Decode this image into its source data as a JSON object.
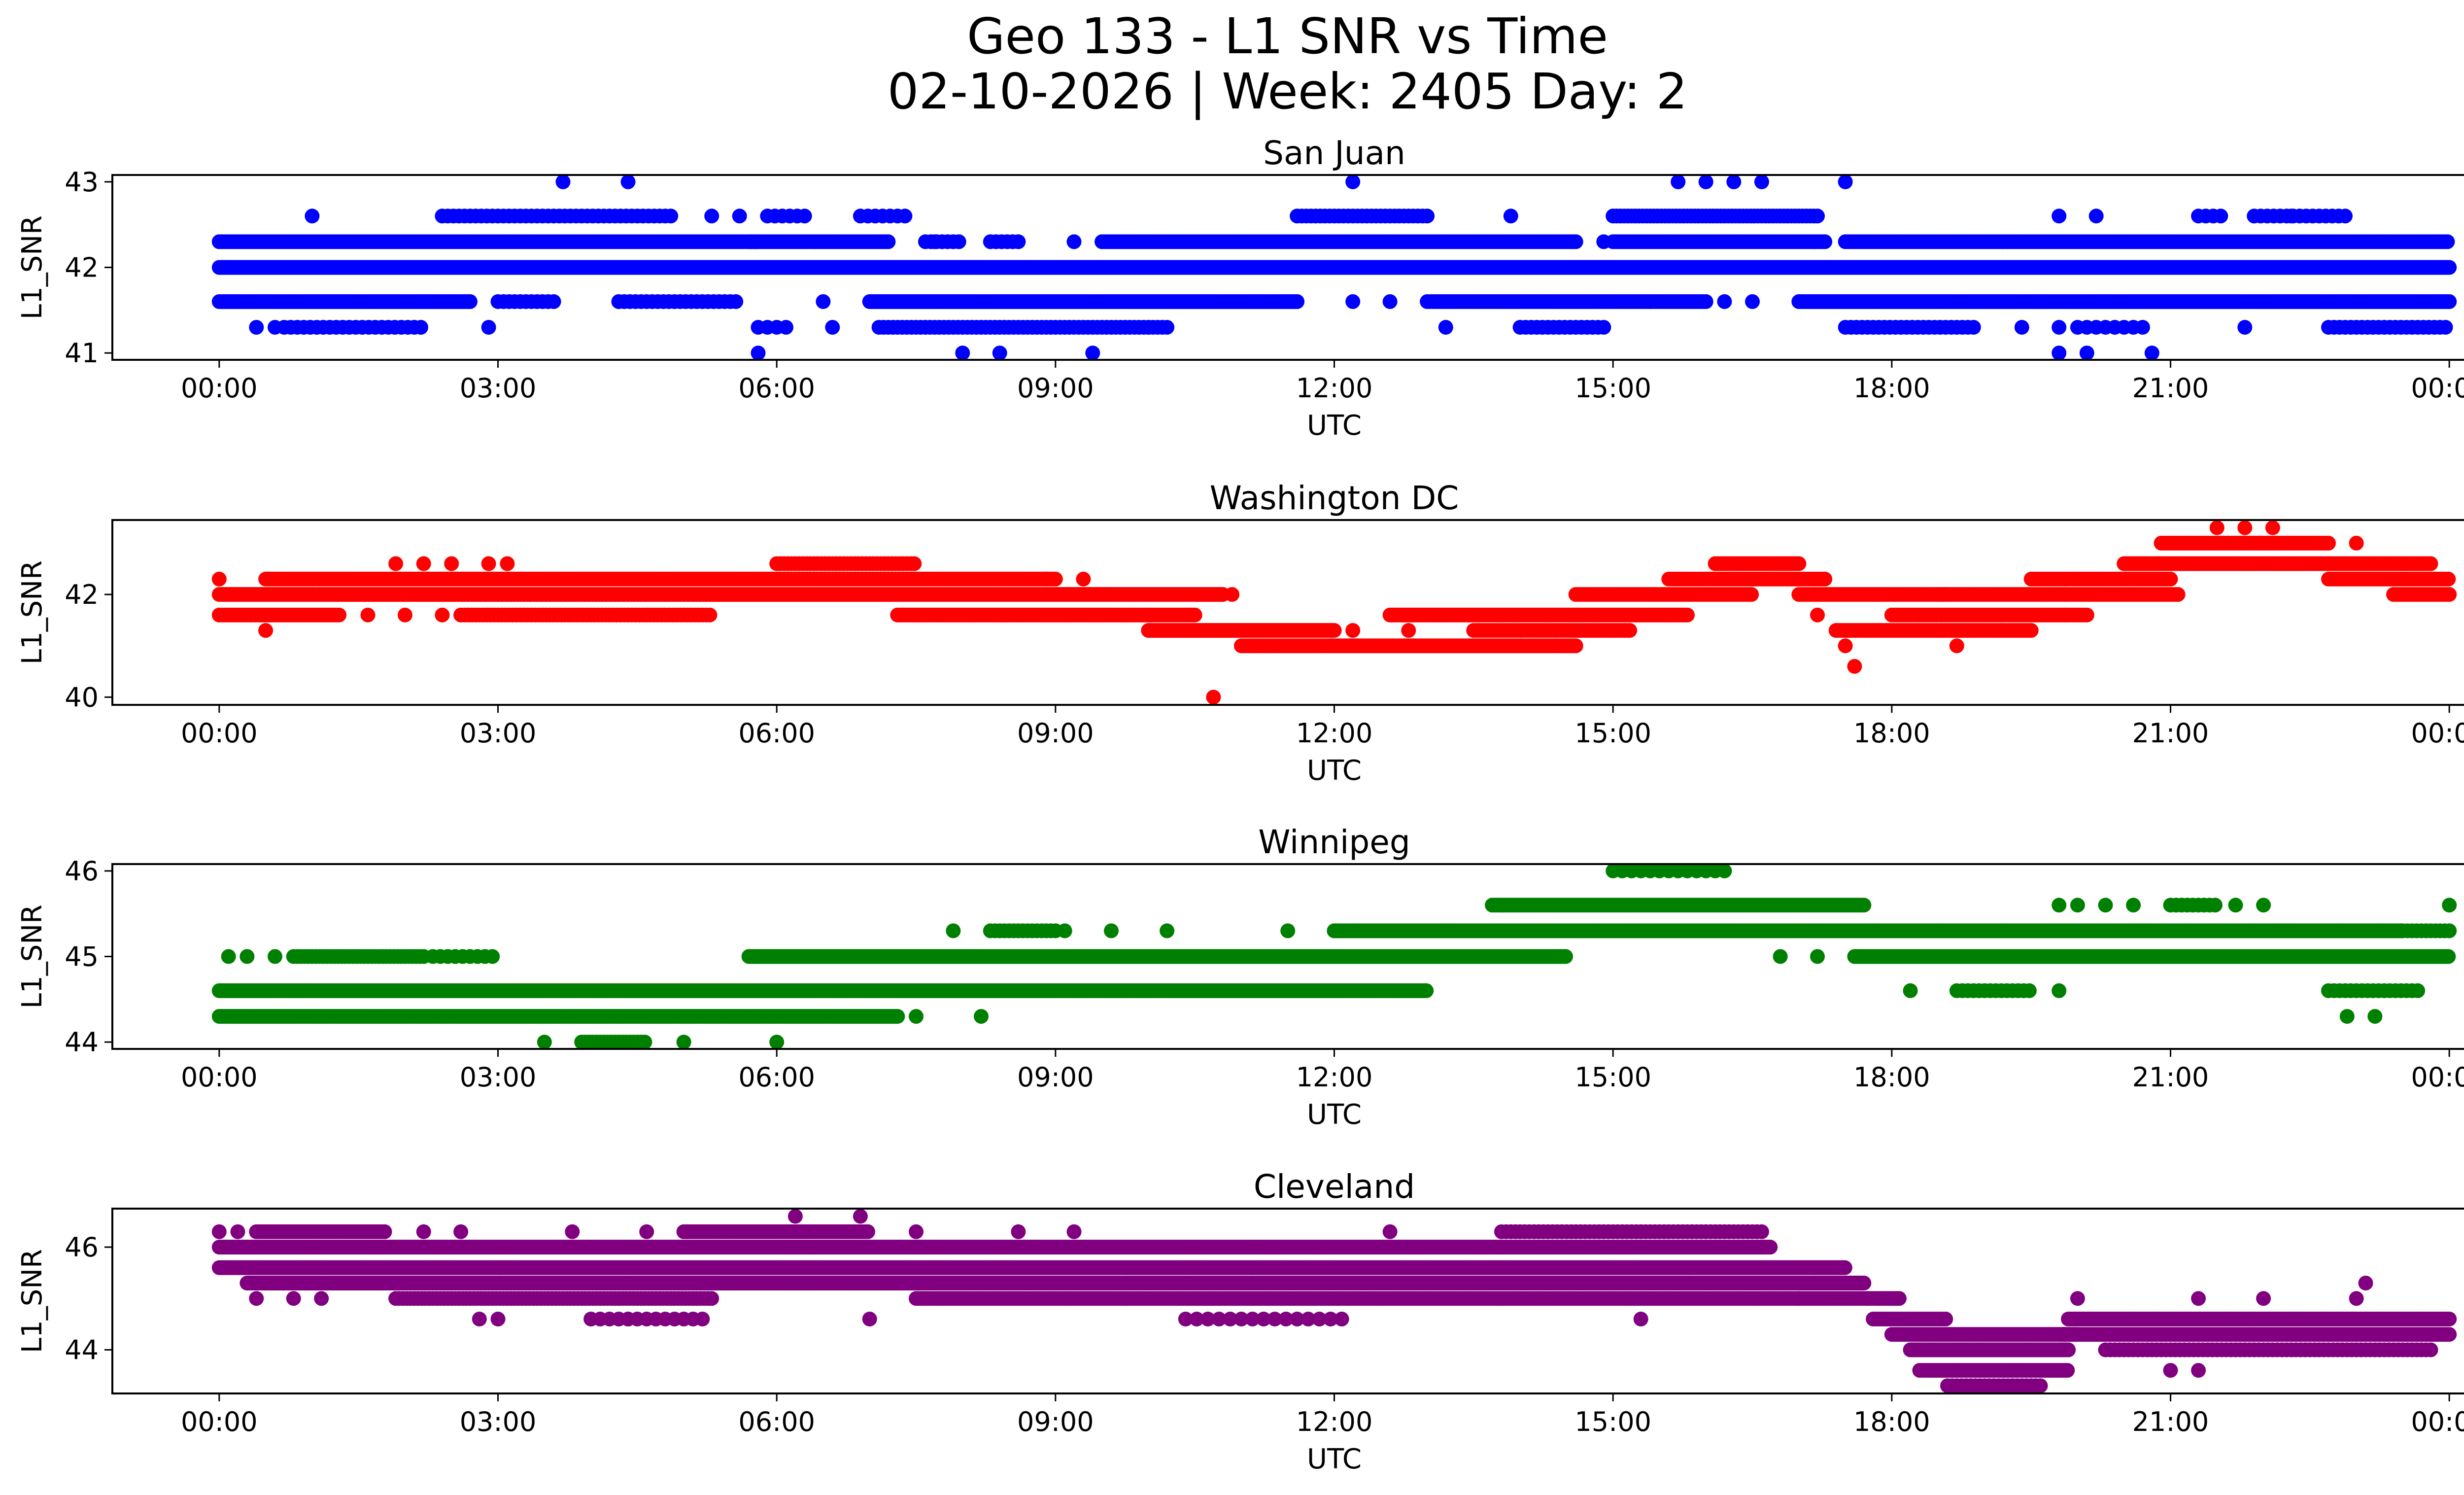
{
  "title_line1": "Geo 133 - L1 SNR vs Time",
  "title_line2": "02-10-2026 | Week: 2405 Day: 2",
  "x_tick_labels": [
    "00:00",
    "03:00",
    "06:00",
    "09:00",
    "12:00",
    "15:00",
    "18:00",
    "21:00",
    "00:00"
  ],
  "chart_data": [
    {
      "type": "scatter",
      "title": "San Juan",
      "xlabel": "UTC",
      "ylabel": "L1_SNR",
      "color": "#0000ff",
      "x_unit": "hours UTC",
      "xlim": [
        -1.15,
        25.15
      ],
      "ylim": [
        40.92,
        43.08
      ],
      "yticks": [
        41,
        42,
        43
      ],
      "segments": [
        {
          "x": [
            0.0,
            24.0
          ],
          "y": 42.0,
          "step": 0.01
        },
        {
          "x": [
            0.0,
            2.7
          ],
          "y": 41.6,
          "step": 0.02
        },
        {
          "x": [
            3.0,
            3.6
          ],
          "y": 41.6,
          "step": 0.06
        },
        {
          "x": [
            4.3,
            5.6
          ],
          "y": 41.6,
          "step": 0.06
        },
        {
          "x": [
            7.0,
            11.6
          ],
          "y": 41.6,
          "step": 0.02
        },
        {
          "x": [
            13.0,
            16.0
          ],
          "y": 41.6,
          "step": 0.03
        },
        {
          "x": [
            17.0,
            24.0
          ],
          "y": 41.6,
          "step": 0.02
        },
        {
          "x": [
            0.0,
            5.8
          ],
          "y": 42.3,
          "step": 0.03
        },
        {
          "x": [
            5.7,
            7.2
          ],
          "y": 42.3,
          "step": 0.03
        },
        {
          "x": [
            7.6,
            8.0
          ],
          "y": 42.3,
          "step": 0.06
        },
        {
          "x": [
            8.3,
            8.6
          ],
          "y": 42.3,
          "step": 0.06
        },
        {
          "x": [
            9.5,
            14.6
          ],
          "y": 42.3,
          "step": 0.03
        },
        {
          "x": [
            15.0,
            17.3
          ],
          "y": 42.3,
          "step": 0.03
        },
        {
          "x": [
            17.5,
            24.0
          ],
          "y": 42.3,
          "step": 0.03
        },
        {
          "x": [
            0.7,
            2.2
          ],
          "y": 41.3,
          "step": 0.07
        },
        {
          "x": [
            5.8,
            6.1
          ],
          "y": 41.3,
          "step": 0.1
        },
        {
          "x": [
            7.1,
            10.2
          ],
          "y": 41.3,
          "step": 0.05
        },
        {
          "x": [
            14.0,
            14.9
          ],
          "y": 41.3,
          "step": 0.06
        },
        {
          "x": [
            17.5,
            18.9
          ],
          "y": 41.3,
          "step": 0.06
        },
        {
          "x": [
            20.0,
            20.7
          ],
          "y": 41.3,
          "step": 0.1
        },
        {
          "x": [
            22.7,
            24.0
          ],
          "y": 41.3,
          "step": 0.06
        },
        {
          "x": [
            2.4,
            4.9
          ],
          "y": 42.6,
          "step": 0.06
        },
        {
          "x": [
            5.9,
            6.3
          ],
          "y": 42.6,
          "step": 0.08
        },
        {
          "x": [
            6.9,
            7.4
          ],
          "y": 42.6,
          "step": 0.08
        },
        {
          "x": [
            11.6,
            13.0
          ],
          "y": 42.6,
          "step": 0.05
        },
        {
          "x": [
            15.0,
            17.2
          ],
          "y": 42.6,
          "step": 0.04
        },
        {
          "x": [
            21.3,
            21.6
          ],
          "y": 42.6,
          "step": 0.08
        },
        {
          "x": [
            21.9,
            22.9
          ],
          "y": 42.6,
          "step": 0.07
        }
      ],
      "points": [
        [
          0.4,
          41.3
        ],
        [
          0.6,
          41.3
        ],
        [
          2.9,
          41.3
        ],
        [
          6.6,
          41.3
        ],
        [
          10.0,
          41.3
        ],
        [
          13.2,
          41.3
        ],
        [
          19.4,
          41.3
        ],
        [
          19.8,
          41.3
        ],
        [
          21.8,
          41.3
        ],
        [
          5.8,
          41.0
        ],
        [
          8.0,
          41.0
        ],
        [
          8.4,
          41.0
        ],
        [
          9.4,
          41.0
        ],
        [
          19.8,
          41.0
        ],
        [
          20.1,
          41.0
        ],
        [
          20.8,
          41.0
        ],
        [
          3.7,
          43.0
        ],
        [
          4.4,
          43.0
        ],
        [
          12.2,
          43.0
        ],
        [
          15.7,
          43.0
        ],
        [
          16.0,
          43.0
        ],
        [
          16.3,
          43.0
        ],
        [
          16.6,
          43.0
        ],
        [
          17.5,
          43.0
        ],
        [
          1.0,
          42.6
        ],
        [
          5.3,
          42.6
        ],
        [
          5.6,
          42.6
        ],
        [
          13.9,
          42.6
        ],
        [
          19.8,
          42.6
        ],
        [
          20.2,
          42.6
        ],
        [
          22.3,
          42.6
        ],
        [
          4.3,
          41.6
        ],
        [
          6.5,
          41.6
        ],
        [
          12.2,
          41.6
        ],
        [
          12.6,
          41.6
        ],
        [
          15.4,
          41.6
        ],
        [
          16.2,
          41.6
        ],
        [
          16.5,
          41.6
        ],
        [
          7.7,
          42.3
        ],
        [
          9.2,
          42.3
        ],
        [
          14.9,
          42.3
        ]
      ]
    },
    {
      "type": "scatter",
      "title": "Washington DC",
      "xlabel": "UTC",
      "ylabel": "L1_SNR",
      "color": "#ff0000",
      "x_unit": "hours UTC",
      "xlim": [
        -1.15,
        25.15
      ],
      "ylim": [
        39.85,
        43.45
      ],
      "yticks": [
        40,
        42
      ],
      "segments": [
        {
          "x": [
            0.0,
            9.6
          ],
          "y": 42.0,
          "step": 0.015
        },
        {
          "x": [
            7.2,
            10.8
          ],
          "y": 42.0,
          "step": 0.015
        },
        {
          "x": [
            0.0,
            1.3
          ],
          "y": 41.6,
          "step": 0.03
        },
        {
          "x": [
            2.6,
            5.3
          ],
          "y": 41.6,
          "step": 0.04
        },
        {
          "x": [
            7.3,
            10.5
          ],
          "y": 41.6,
          "step": 0.02
        },
        {
          "x": [
            0.5,
            9.0
          ],
          "y": 42.3,
          "step": 0.02
        },
        {
          "x": [
            6.0,
            7.5
          ],
          "y": 42.6,
          "step": 0.04
        },
        {
          "x": [
            10.0,
            12.0
          ],
          "y": 41.3,
          "step": 0.02
        },
        {
          "x": [
            11.0,
            14.6
          ],
          "y": 41.0,
          "step": 0.02
        },
        {
          "x": [
            12.6,
            15.8
          ],
          "y": 41.6,
          "step": 0.02
        },
        {
          "x": [
            13.5,
            15.2
          ],
          "y": 41.3,
          "step": 0.03
        },
        {
          "x": [
            14.6,
            16.5
          ],
          "y": 42.0,
          "step": 0.03
        },
        {
          "x": [
            15.6,
            17.3
          ],
          "y": 42.3,
          "step": 0.03
        },
        {
          "x": [
            16.1,
            17.0
          ],
          "y": 42.6,
          "step": 0.03
        },
        {
          "x": [
            17.4,
            19.5
          ],
          "y": 41.3,
          "step": 0.03
        },
        {
          "x": [
            17.0,
            18.6
          ],
          "y": 42.0,
          "step": 0.03
        },
        {
          "x": [
            18.0,
            20.1
          ],
          "y": 41.6,
          "step": 0.03
        },
        {
          "x": [
            18.5,
            21.1
          ],
          "y": 42.0,
          "step": 0.03
        },
        {
          "x": [
            19.5,
            21.0
          ],
          "y": 42.3,
          "step": 0.03
        },
        {
          "x": [
            20.5,
            23.8
          ],
          "y": 42.6,
          "step": 0.025
        },
        {
          "x": [
            20.9,
            22.7
          ],
          "y": 43.0,
          "step": 0.025
        },
        {
          "x": [
            22.7,
            24.0
          ],
          "y": 42.3,
          "step": 0.03
        },
        {
          "x": [
            23.4,
            24.0
          ],
          "y": 42.0,
          "step": 0.03
        }
      ],
      "points": [
        [
          0.0,
          42.3
        ],
        [
          0.5,
          41.3
        ],
        [
          1.6,
          41.6
        ],
        [
          2.0,
          41.6
        ],
        [
          2.4,
          41.6
        ],
        [
          1.9,
          42.6
        ],
        [
          2.2,
          42.6
        ],
        [
          2.5,
          42.6
        ],
        [
          2.9,
          42.6
        ],
        [
          3.1,
          42.6
        ],
        [
          10.7,
          40.0
        ],
        [
          10.9,
          42.0
        ],
        [
          12.2,
          41.3
        ],
        [
          12.8,
          41.3
        ],
        [
          13.5,
          41.0
        ],
        [
          14.0,
          41.0
        ],
        [
          14.4,
          41.0
        ],
        [
          17.6,
          40.6
        ],
        [
          17.5,
          41.0
        ],
        [
          18.7,
          41.0
        ],
        [
          17.2,
          41.6
        ],
        [
          21.5,
          43.3
        ],
        [
          21.8,
          43.3
        ],
        [
          22.1,
          43.3
        ],
        [
          23.5,
          42.6
        ],
        [
          23.0,
          43.0
        ],
        [
          8.9,
          42.3
        ],
        [
          9.3,
          42.3
        ]
      ]
    },
    {
      "type": "scatter",
      "title": "Winnipeg",
      "xlabel": "UTC",
      "ylabel": "L1_SNR",
      "color": "#008000",
      "x_unit": "hours UTC",
      "xlim": [
        -1.15,
        25.15
      ],
      "ylim": [
        43.92,
        46.08
      ],
      "yticks": [
        44,
        45,
        46
      ],
      "segments": [
        {
          "x": [
            0.0,
            13.0
          ],
          "y": 44.6,
          "step": 0.015
        },
        {
          "x": [
            0.0,
            7.3
          ],
          "y": 44.3,
          "step": 0.02
        },
        {
          "x": [
            5.7,
            14.5
          ],
          "y": 45.0,
          "step": 0.015
        },
        {
          "x": [
            0.8,
            2.2
          ],
          "y": 45.0,
          "step": 0.04
        },
        {
          "x": [
            2.3,
            3.0
          ],
          "y": 45.0,
          "step": 0.08
        },
        {
          "x": [
            3.9,
            4.6
          ],
          "y": 44.0,
          "step": 0.04
        },
        {
          "x": [
            12.0,
            23.5
          ],
          "y": 45.3,
          "step": 0.015
        },
        {
          "x": [
            13.7,
            17.7
          ],
          "y": 45.6,
          "step": 0.025
        },
        {
          "x": [
            17.6,
            24.0
          ],
          "y": 45.0,
          "step": 0.015
        },
        {
          "x": [
            8.3,
            9.0
          ],
          "y": 45.3,
          "step": 0.05
        },
        {
          "x": [
            15.0,
            16.2
          ],
          "y": 46.0,
          "step": 0.1
        },
        {
          "x": [
            18.7,
            19.5
          ],
          "y": 44.6,
          "step": 0.06
        },
        {
          "x": [
            22.7,
            23.7
          ],
          "y": 44.6,
          "step": 0.06
        },
        {
          "x": [
            23.5,
            24.0
          ],
          "y": 45.3,
          "step": 0.05
        },
        {
          "x": [
            21.0,
            21.5
          ],
          "y": 45.6,
          "step": 0.06
        }
      ],
      "points": [
        [
          0.1,
          45.0
        ],
        [
          0.3,
          45.0
        ],
        [
          0.6,
          45.0
        ],
        [
          3.5,
          44.0
        ],
        [
          5.0,
          44.0
        ],
        [
          6.0,
          44.0
        ],
        [
          7.5,
          44.3
        ],
        [
          8.2,
          44.3
        ],
        [
          7.9,
          45.3
        ],
        [
          9.1,
          45.3
        ],
        [
          9.6,
          45.3
        ],
        [
          10.2,
          45.3
        ],
        [
          11.5,
          45.3
        ],
        [
          16.8,
          45.0
        ],
        [
          17.2,
          45.0
        ],
        [
          18.2,
          44.6
        ],
        [
          19.8,
          44.6
        ],
        [
          22.9,
          44.3
        ],
        [
          23.2,
          44.3
        ],
        [
          19.8,
          45.6
        ],
        [
          20.0,
          45.6
        ],
        [
          20.3,
          45.6
        ],
        [
          20.6,
          45.6
        ],
        [
          21.7,
          45.6
        ],
        [
          22.0,
          45.6
        ],
        [
          24.0,
          45.6
        ],
        [
          12.0,
          45.3
        ]
      ]
    },
    {
      "type": "scatter",
      "title": "Cleveland",
      "xlabel": "UTC",
      "ylabel": "L1_SNR",
      "color": "#800080",
      "x_unit": "hours UTC",
      "xlim": [
        -1.15,
        25.15
      ],
      "ylim": [
        43.15,
        46.75
      ],
      "yticks": [
        44,
        46
      ],
      "segments": [
        {
          "x": [
            0.0,
            16.7
          ],
          "y": 46.0,
          "step": 0.012
        },
        {
          "x": [
            0.0,
            17.5
          ],
          "y": 45.6,
          "step": 0.012
        },
        {
          "x": [
            0.3,
            17.7
          ],
          "y": 45.3,
          "step": 0.012
        },
        {
          "x": [
            0.4,
            1.8
          ],
          "y": 46.3,
          "step": 0.03
        },
        {
          "x": [
            5.0,
            7.0
          ],
          "y": 46.3,
          "step": 0.03
        },
        {
          "x": [
            1.9,
            5.3
          ],
          "y": 45.0,
          "step": 0.04
        },
        {
          "x": [
            7.5,
            17.0
          ],
          "y": 45.0,
          "step": 0.025
        },
        {
          "x": [
            13.8,
            16.6
          ],
          "y": 46.3,
          "step": 0.05
        },
        {
          "x": [
            17.0,
            18.1
          ],
          "y": 45.0,
          "step": 0.03
        },
        {
          "x": [
            17.8,
            18.6
          ],
          "y": 44.6,
          "step": 0.03
        },
        {
          "x": [
            18.0,
            20.0
          ],
          "y": 44.3,
          "step": 0.02
        },
        {
          "x": [
            18.2,
            19.9
          ],
          "y": 44.0,
          "step": 0.02
        },
        {
          "x": [
            18.3,
            19.9
          ],
          "y": 43.6,
          "step": 0.03
        },
        {
          "x": [
            18.6,
            19.6
          ],
          "y": 43.3,
          "step": 0.05
        },
        {
          "x": [
            19.9,
            24.0
          ],
          "y": 44.6,
          "step": 0.02
        },
        {
          "x": [
            19.8,
            24.0
          ],
          "y": 44.3,
          "step": 0.02
        },
        {
          "x": [
            20.3,
            23.8
          ],
          "y": 44.0,
          "step": 0.05
        },
        {
          "x": [
            10.4,
            12.1
          ],
          "y": 44.6,
          "step": 0.12
        },
        {
          "x": [
            4.0,
            5.2
          ],
          "y": 44.6,
          "step": 0.1
        }
      ],
      "points": [
        [
          0.0,
          46.3
        ],
        [
          0.2,
          46.3
        ],
        [
          0.4,
          45.0
        ],
        [
          0.8,
          45.0
        ],
        [
          1.1,
          45.0
        ],
        [
          2.8,
          44.6
        ],
        [
          3.0,
          44.6
        ],
        [
          4.4,
          44.6
        ],
        [
          2.2,
          46.3
        ],
        [
          2.6,
          46.3
        ],
        [
          3.8,
          46.3
        ],
        [
          4.6,
          46.3
        ],
        [
          6.2,
          46.6
        ],
        [
          6.9,
          46.6
        ],
        [
          7.5,
          46.3
        ],
        [
          8.6,
          46.3
        ],
        [
          9.2,
          46.3
        ],
        [
          12.6,
          46.3
        ],
        [
          20.0,
          45.0
        ],
        [
          21.3,
          45.0
        ],
        [
          22.0,
          45.0
        ],
        [
          23.0,
          45.0
        ],
        [
          23.1,
          45.3
        ],
        [
          21.0,
          43.6
        ],
        [
          21.3,
          43.6
        ],
        [
          19.3,
          43.3
        ],
        [
          7.0,
          44.6
        ],
        [
          15.3,
          44.6
        ]
      ]
    }
  ]
}
